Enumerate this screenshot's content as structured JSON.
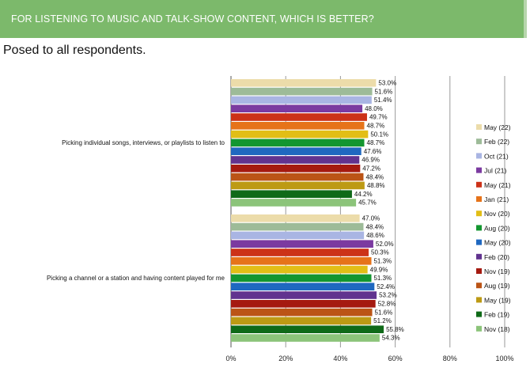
{
  "header": {
    "title": "FOR LISTENING TO MUSIC AND TALK-SHOW CONTENT, WHICH IS BETTER?",
    "background": "#7cb96b"
  },
  "subtitle": "Posed to all respondents.",
  "chart_data": {
    "type": "bar",
    "orientation": "horizontal",
    "title": "",
    "xlabel": "",
    "ylabel": "",
    "xlim": [
      0,
      100
    ],
    "x_ticks": [
      "0%",
      "20%",
      "40%",
      "60%",
      "80%",
      "100%"
    ],
    "grid": "vertical major gridlines",
    "legend_position": "right",
    "value_format": "percent_one_decimal",
    "categories": [
      "Picking individual songs, interviews, or playlists to listen to",
      "Picking a channel or a station and having content played for me"
    ],
    "series": [
      {
        "name": "May (22)",
        "color": "#ecdcaa",
        "values": [
          53.0,
          47.0
        ]
      },
      {
        "name": "Feb (22)",
        "color": "#9dbb98",
        "values": [
          51.6,
          48.4
        ]
      },
      {
        "name": "Oct (21)",
        "color": "#a9b5e3",
        "values": [
          51.4,
          48.6
        ]
      },
      {
        "name": "Jul (21)",
        "color": "#7b3aa0",
        "values": [
          48.0,
          52.0
        ]
      },
      {
        "name": "May (21)",
        "color": "#cc3218",
        "values": [
          49.7,
          50.3
        ]
      },
      {
        "name": "Jan (21)",
        "color": "#e6731a",
        "values": [
          48.7,
          51.3
        ]
      },
      {
        "name": "Nov (20)",
        "color": "#e2be16",
        "values": [
          50.1,
          49.9
        ]
      },
      {
        "name": "Aug (20)",
        "color": "#139630",
        "values": [
          48.7,
          51.3
        ]
      },
      {
        "name": "May (20)",
        "color": "#1f68c0",
        "values": [
          47.6,
          52.4
        ]
      },
      {
        "name": "Feb (20)",
        "color": "#61338f",
        "values": [
          46.9,
          53.2
        ]
      },
      {
        "name": "Nov (19)",
        "color": "#a51a10",
        "values": [
          47.2,
          52.8
        ]
      },
      {
        "name": "Aug (19)",
        "color": "#bb5416",
        "values": [
          48.4,
          51.6
        ]
      },
      {
        "name": "May (19)",
        "color": "#bd9a14",
        "values": [
          48.8,
          51.2
        ]
      },
      {
        "name": "Feb (19)",
        "color": "#0f6a18",
        "values": [
          44.2,
          55.8
        ]
      },
      {
        "name": "Nov (18)",
        "color": "#8cc47a",
        "values": [
          45.7,
          54.3
        ]
      }
    ]
  }
}
